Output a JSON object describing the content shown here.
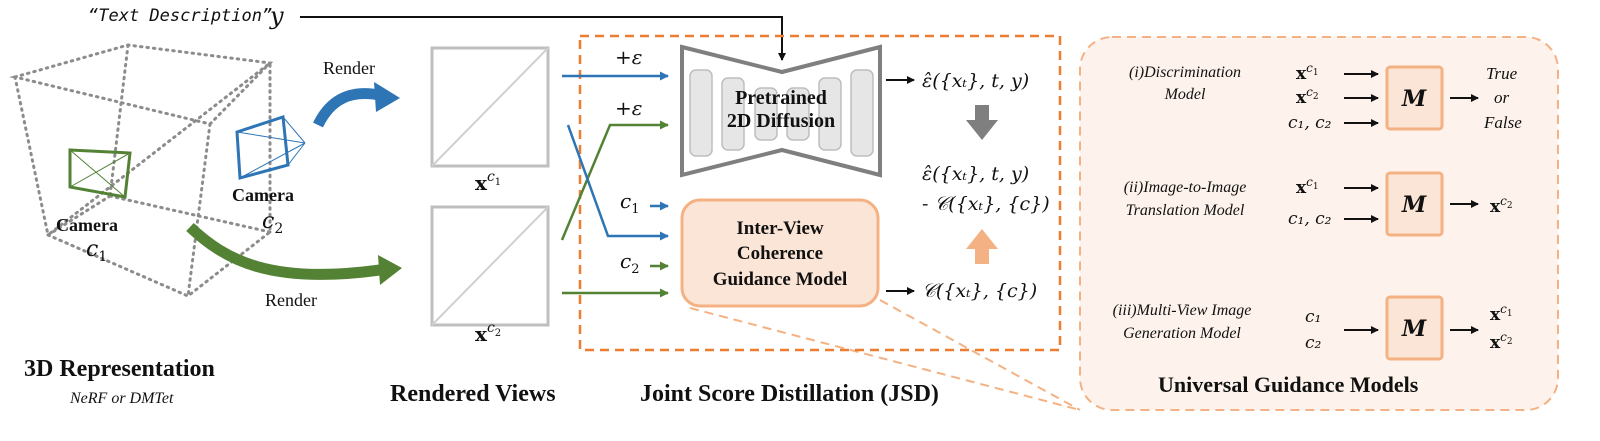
{
  "text_prompt": {
    "label": "“Text Description”",
    "symbol": "y"
  },
  "scene": {
    "title": "3D Representation",
    "subtitle": "NeRF or DMTet",
    "camera1": {
      "label": "Camera",
      "sub": "c",
      "subidx": "1"
    },
    "camera2": {
      "label": "Camera",
      "sub": "c",
      "subidx": "2"
    },
    "render_top": "Render",
    "render_bottom": "Render"
  },
  "views": {
    "title": "Rendered Views",
    "view1": {
      "base": "x",
      "sup": "c",
      "supidx": "1"
    },
    "view2": {
      "base": "x",
      "sup": "c",
      "supidx": "2"
    }
  },
  "jsd": {
    "title": "Joint Score Distillation (JSD)",
    "noise_label_1": "+ε",
    "noise_label_2": "+ε",
    "c1_label": {
      "sym": "c",
      "idx": "1"
    },
    "c2_label": {
      "sym": "c",
      "idx": "2"
    },
    "diffusion": {
      "line1": "Pretrained",
      "line2": "2D Diffusion"
    },
    "guidance": {
      "line1": "Inter-View",
      "line2": "Coherence",
      "line3": "Guidance Model"
    },
    "out_eps": "ε̂({xₜ}, t, y)",
    "out_combined_1": "ε̂({xₜ}, t, y)",
    "out_combined_2": "- 𝒞({xₜ}, {c})",
    "out_c": "𝒞({xₜ}, {c})"
  },
  "universal": {
    "title": "Universal  Guidance Models",
    "model_symbol": "M",
    "rows": [
      {
        "name1": "(i)Discrimination",
        "name2": "Model",
        "inputs": [
          "x^c1",
          "x^c2",
          "c₁, c₂"
        ],
        "outputs": [
          "True",
          "or",
          "False"
        ]
      },
      {
        "name1": "(ii)Image-to-Image",
        "name2": "Translation Model",
        "inputs": [
          "x^c1",
          "c₁, c₂"
        ],
        "outputs": [
          "x^c2"
        ]
      },
      {
        "name1": "(iii)Multi-View Image",
        "name2": "Generation Model",
        "inputs": [
          "c₁",
          "c₂"
        ],
        "outputs": [
          "x^c1",
          "x^c2"
        ]
      }
    ]
  },
  "colors": {
    "blue": "#2e75b6",
    "green": "#548235",
    "orange": "#ed7d31",
    "orange_fill": "#fbe5d6",
    "orange_stroke": "#f4b183",
    "gray": "#7f7f7f",
    "panel_fill": "#fdf3ec"
  }
}
